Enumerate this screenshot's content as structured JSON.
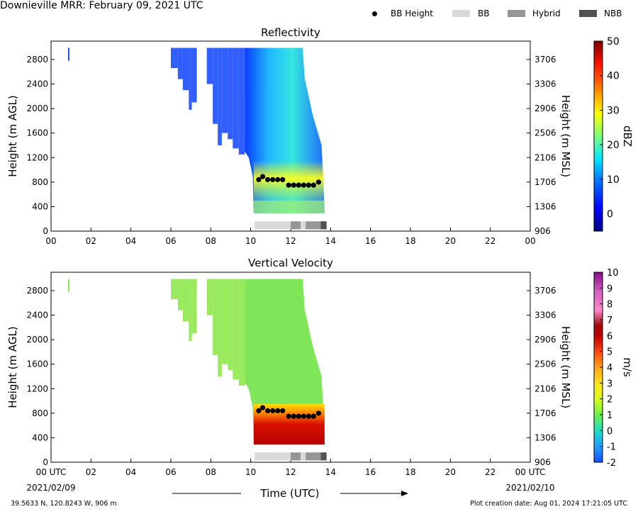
{
  "header": {
    "title": "Downieville MRR:  February 09, 2021 UTC",
    "legend": [
      {
        "label": "BB Height",
        "color": "#000000",
        "kind": "dot"
      },
      {
        "label": "BB",
        "color": "#d9d9d9",
        "kind": "swatch"
      },
      {
        "label": "Hybrid",
        "color": "#969696",
        "kind": "swatch"
      },
      {
        "label": "NBB",
        "color": "#525252",
        "kind": "swatch"
      }
    ]
  },
  "footer": {
    "location": "39.5633 N, 120.8243 W, 906 m",
    "creation": "Plot creation date: Aug 01, 2024 17:21:05 UTC",
    "xlabel": "Time (UTC)",
    "start_date": "2021/02/09",
    "end_date": "2021/02/10"
  },
  "chart_data": [
    {
      "type": "heatmap",
      "title": "Reflectivity",
      "xlabel": "",
      "ylabel": "Height (m AGL)",
      "ylabel_right": "Height (m MSL)",
      "x_ticks": [
        "00",
        "02",
        "04",
        "06",
        "08",
        "10",
        "12",
        "14",
        "16",
        "18",
        "20",
        "22",
        "00"
      ],
      "xlim": [
        0,
        24
      ],
      "y_ticks": [
        0,
        400,
        800,
        1200,
        1600,
        2000,
        2400,
        2800
      ],
      "ylim": [
        0,
        3100
      ],
      "y_right_ticks": [
        906,
        1306,
        1706,
        2106,
        2506,
        2906,
        3306,
        3706
      ],
      "colorbar": {
        "label": "dBZ",
        "ticks": [
          0,
          10,
          20,
          30,
          40,
          50
        ],
        "range": [
          -5,
          50
        ]
      },
      "bb_height": {
        "x": [
          10.4,
          10.6,
          10.85,
          11.1,
          11.35,
          11.6,
          11.9,
          12.15,
          12.4,
          12.65,
          12.9,
          13.15,
          13.4
        ],
        "y": [
          840,
          890,
          840,
          840,
          840,
          840,
          750,
          750,
          750,
          750,
          750,
          750,
          800
        ]
      },
      "bb_type": [
        {
          "type": "BB",
          "start": 10.2,
          "end": 12.0
        },
        {
          "type": "Hybrid",
          "start": 12.0,
          "end": 12.5
        },
        {
          "type": "BB",
          "start": 12.5,
          "end": 12.75
        },
        {
          "type": "Hybrid",
          "start": 12.75,
          "end": 13.5
        },
        {
          "type": "NBB",
          "start": 13.5,
          "end": 13.8
        }
      ]
    },
    {
      "type": "heatmap",
      "title": "Vertical Velocity",
      "xlabel": "Time (UTC)",
      "ylabel": "Height (m AGL)",
      "ylabel_right": "Height (m MSL)",
      "x_ticks": [
        "00 UTC",
        "02",
        "04",
        "06",
        "08",
        "10",
        "12",
        "14",
        "16",
        "18",
        "20",
        "22",
        "00 UTC"
      ],
      "xlim": [
        0,
        24
      ],
      "y_ticks": [
        0,
        400,
        800,
        1200,
        1600,
        2000,
        2400,
        2800
      ],
      "ylim": [
        0,
        3100
      ],
      "y_right_ticks": [
        906,
        1306,
        1706,
        2106,
        2506,
        2906,
        3306,
        3706
      ],
      "colorbar": {
        "label": "m/s",
        "ticks": [
          -2,
          -1,
          0,
          1,
          2,
          3,
          4,
          5,
          6,
          7,
          8,
          9,
          10
        ],
        "range": [
          -2,
          10
        ]
      },
      "bb_height": {
        "x": [
          10.4,
          10.6,
          10.85,
          11.1,
          11.35,
          11.6,
          11.9,
          12.15,
          12.4,
          12.65,
          12.9,
          13.15,
          13.4
        ],
        "y": [
          840,
          890,
          840,
          840,
          840,
          840,
          750,
          750,
          750,
          750,
          750,
          750,
          800
        ]
      },
      "bb_type": [
        {
          "type": "BB",
          "start": 10.2,
          "end": 12.0
        },
        {
          "type": "Hybrid",
          "start": 12.0,
          "end": 12.5
        },
        {
          "type": "BB",
          "start": 12.5,
          "end": 12.75
        },
        {
          "type": "Hybrid",
          "start": 12.75,
          "end": 13.5
        },
        {
          "type": "NBB",
          "start": 13.5,
          "end": 13.8
        }
      ]
    }
  ]
}
